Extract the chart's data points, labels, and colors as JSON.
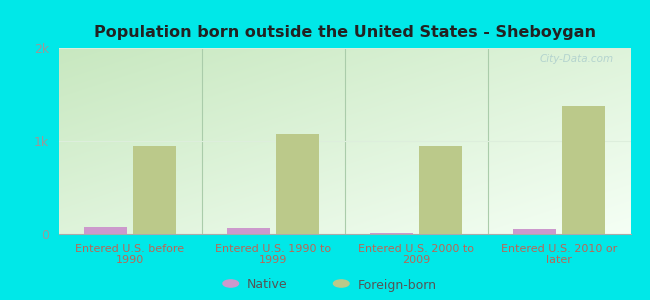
{
  "title": "Population born outside the United States - Sheboygan",
  "categories": [
    "Entered U.S. before\n1990",
    "Entered U.S. 1990 to\n1999",
    "Entered U.S. 2000 to\n2009",
    "Entered U.S. 2010 or\nlater"
  ],
  "native_values": [
    80,
    60,
    15,
    55
  ],
  "foreign_values": [
    950,
    1080,
    950,
    1380
  ],
  "native_color": "#cc99cc",
  "foreign_color": "#bbc98a",
  "background_outer": "#00e8e8",
  "background_inner_topleft": "#c8e8c0",
  "background_inner_bottomright": "#f5fff5",
  "title_color": "#222222",
  "axis_label_color": "#bb6655",
  "tick_label_color": "#999999",
  "ylim": [
    0,
    2000
  ],
  "yticks": [
    0,
    1000,
    2000
  ],
  "ytick_labels": [
    "0",
    "1k",
    "2k"
  ],
  "bar_width": 0.3,
  "watermark": "City-Data.com",
  "legend_native": "Native",
  "legend_foreign": "Foreign-born",
  "divider_color": "#aaccaa",
  "grid_color": "#ddeedc"
}
